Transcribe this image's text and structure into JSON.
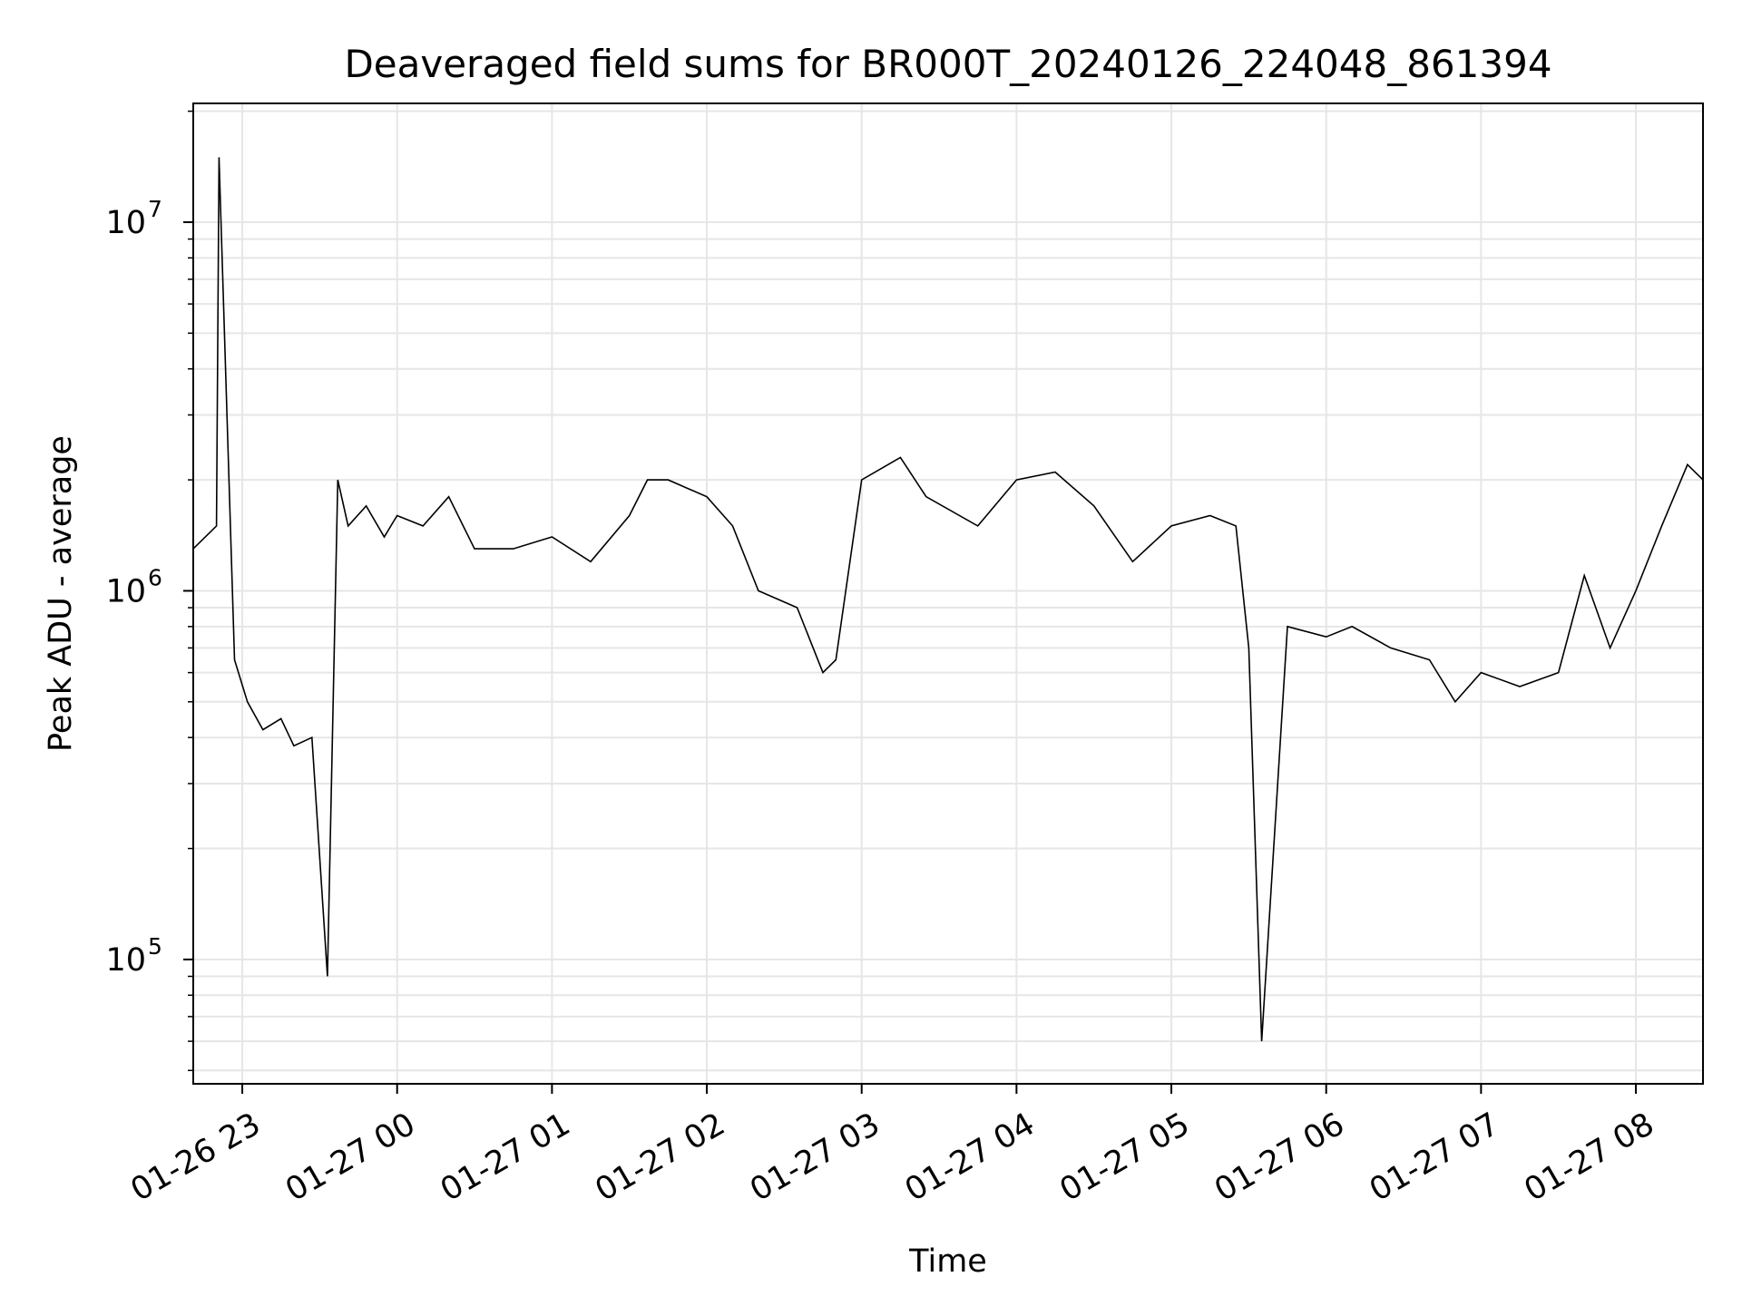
{
  "chart_data": {
    "type": "line",
    "title": "Deaveraged field sums for BR000T_20240126_224048_861394",
    "xlabel": "Time",
    "ylabel": "Peak ADU - average",
    "x_range": [
      "2024-01-26 22:41",
      "2024-01-27 08:26"
    ],
    "ylim": [
      46000,
      21000000
    ],
    "y_scale": "log",
    "x_ticks": [
      "01-26 23",
      "01-27 00",
      "01-27 01",
      "01-27 02",
      "01-27 03",
      "01-27 04",
      "01-27 05",
      "01-27 06",
      "01-27 07",
      "01-27 08"
    ],
    "x_tick_times": [
      "2024-01-26 23:00",
      "2024-01-27 00:00",
      "2024-01-27 01:00",
      "2024-01-27 02:00",
      "2024-01-27 03:00",
      "2024-01-27 04:00",
      "2024-01-27 05:00",
      "2024-01-27 06:00",
      "2024-01-27 07:00",
      "2024-01-27 08:00"
    ],
    "y_ticks": [
      {
        "base": "10",
        "exp": "5",
        "value": 100000
      },
      {
        "base": "10",
        "exp": "6",
        "value": 1000000
      },
      {
        "base": "10",
        "exp": "7",
        "value": 10000000
      }
    ],
    "grid": true,
    "line_color": "#000000",
    "grid_color": "#e6e6e6",
    "series": [
      {
        "x": [
          "2024-01-26 22:41",
          "2024-01-26 22:50",
          "2024-01-26 22:51",
          "2024-01-26 22:57",
          "2024-01-26 23:02",
          "2024-01-26 23:08",
          "2024-01-26 23:15",
          "2024-01-26 23:20",
          "2024-01-26 23:27",
          "2024-01-26 23:33",
          "2024-01-26 23:37",
          "2024-01-26 23:41",
          "2024-01-26 23:48",
          "2024-01-26 23:55",
          "2024-01-27 00:00",
          "2024-01-27 00:10",
          "2024-01-27 00:20",
          "2024-01-27 00:30",
          "2024-01-27 00:45",
          "2024-01-27 01:00",
          "2024-01-27 01:15",
          "2024-01-27 01:30",
          "2024-01-27 01:37",
          "2024-01-27 01:45",
          "2024-01-27 02:00",
          "2024-01-27 02:10",
          "2024-01-27 02:20",
          "2024-01-27 02:35",
          "2024-01-27 02:45",
          "2024-01-27 02:50",
          "2024-01-27 03:00",
          "2024-01-27 03:15",
          "2024-01-27 03:25",
          "2024-01-27 03:45",
          "2024-01-27 04:00",
          "2024-01-27 04:15",
          "2024-01-27 04:30",
          "2024-01-27 04:45",
          "2024-01-27 05:00",
          "2024-01-27 05:15",
          "2024-01-27 05:25",
          "2024-01-27 05:30",
          "2024-01-27 05:35",
          "2024-01-27 05:45",
          "2024-01-27 06:00",
          "2024-01-27 06:10",
          "2024-01-27 06:25",
          "2024-01-27 06:40",
          "2024-01-27 06:50",
          "2024-01-27 07:00",
          "2024-01-27 07:15",
          "2024-01-27 07:30",
          "2024-01-27 07:40",
          "2024-01-27 07:50",
          "2024-01-27 08:00",
          "2024-01-27 08:10",
          "2024-01-27 08:20",
          "2024-01-27 08:26"
        ],
        "y": [
          1300000,
          1500000,
          15000000,
          650000,
          500000,
          420000,
          450000,
          380000,
          400000,
          90000,
          2000000,
          1500000,
          1700000,
          1400000,
          1600000,
          1500000,
          1800000,
          1300000,
          1300000,
          1400000,
          1200000,
          1600000,
          2000000,
          2000000,
          1800000,
          1500000,
          1000000,
          900000,
          600000,
          650000,
          2000000,
          2300000,
          1800000,
          1500000,
          2000000,
          2100000,
          1700000,
          1200000,
          1500000,
          1600000,
          1500000,
          700000,
          60000,
          800000,
          750000,
          800000,
          700000,
          650000,
          500000,
          600000,
          550000,
          600000,
          1100000,
          700000,
          1000000,
          1500000,
          2200000,
          2000000
        ]
      }
    ]
  }
}
